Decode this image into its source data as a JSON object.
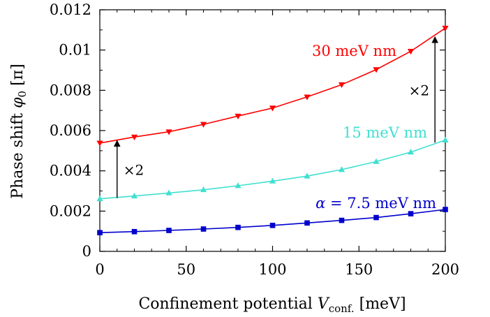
{
  "chart_data": {
    "type": "line",
    "xlabel": "Confinement potential",
    "xlabel_var": "V",
    "xlabel_sub": "conf.",
    "xlabel_unit": "[meV]",
    "ylabel": "Phase shift",
    "ylabel_var": "φ",
    "ylabel_sub": "0",
    "ylabel_unit": "[π]",
    "xlim": [
      0,
      200
    ],
    "ylim": [
      0,
      0.012
    ],
    "xticks": [
      0,
      50,
      100,
      150,
      200
    ],
    "xtick_labels": [
      "0",
      "50",
      "100",
      "150",
      "200"
    ],
    "yticks": [
      0,
      0.002,
      0.004,
      0.006,
      0.008,
      0.01,
      0.012
    ],
    "ytick_labels": [
      "0",
      "0.002",
      "0.004",
      "0.006",
      "0.008",
      "0.01",
      "0.012"
    ],
    "grid": false,
    "x": [
      0,
      20,
      40,
      60,
      80,
      100,
      120,
      140,
      160,
      180,
      200
    ],
    "series": [
      {
        "label": "30 meV nm",
        "color": "#ff0000",
        "marker": "triangle-down",
        "values": [
          0.00538,
          0.00568,
          0.00594,
          0.00631,
          0.00672,
          0.00712,
          0.00767,
          0.00828,
          0.00903,
          0.00994,
          0.01109
        ]
      },
      {
        "label": "15 meV nm",
        "color": "#40e0d0",
        "marker": "triangle-up",
        "values": [
          0.00261,
          0.00275,
          0.0029,
          0.00306,
          0.00326,
          0.00349,
          0.00374,
          0.00406,
          0.00446,
          0.00493,
          0.00553
        ]
      },
      {
        "label_prefix": "α",
        "label": "= 7.5 meV nm",
        "color": "#0000cc",
        "marker": "square",
        "values": [
          0.00093,
          0.00098,
          0.00104,
          0.00111,
          0.00119,
          0.00129,
          0.00141,
          0.00154,
          0.00168,
          0.00187,
          0.00208
        ]
      }
    ],
    "annotations": [
      {
        "text": "×2",
        "arrow_x": 10,
        "arrow_from": 0.00265,
        "arrow_to": 0.0055
      },
      {
        "text": "×2",
        "arrow_x": 194,
        "arrow_from": 0.0054,
        "arrow_to": 0.01065
      }
    ]
  }
}
